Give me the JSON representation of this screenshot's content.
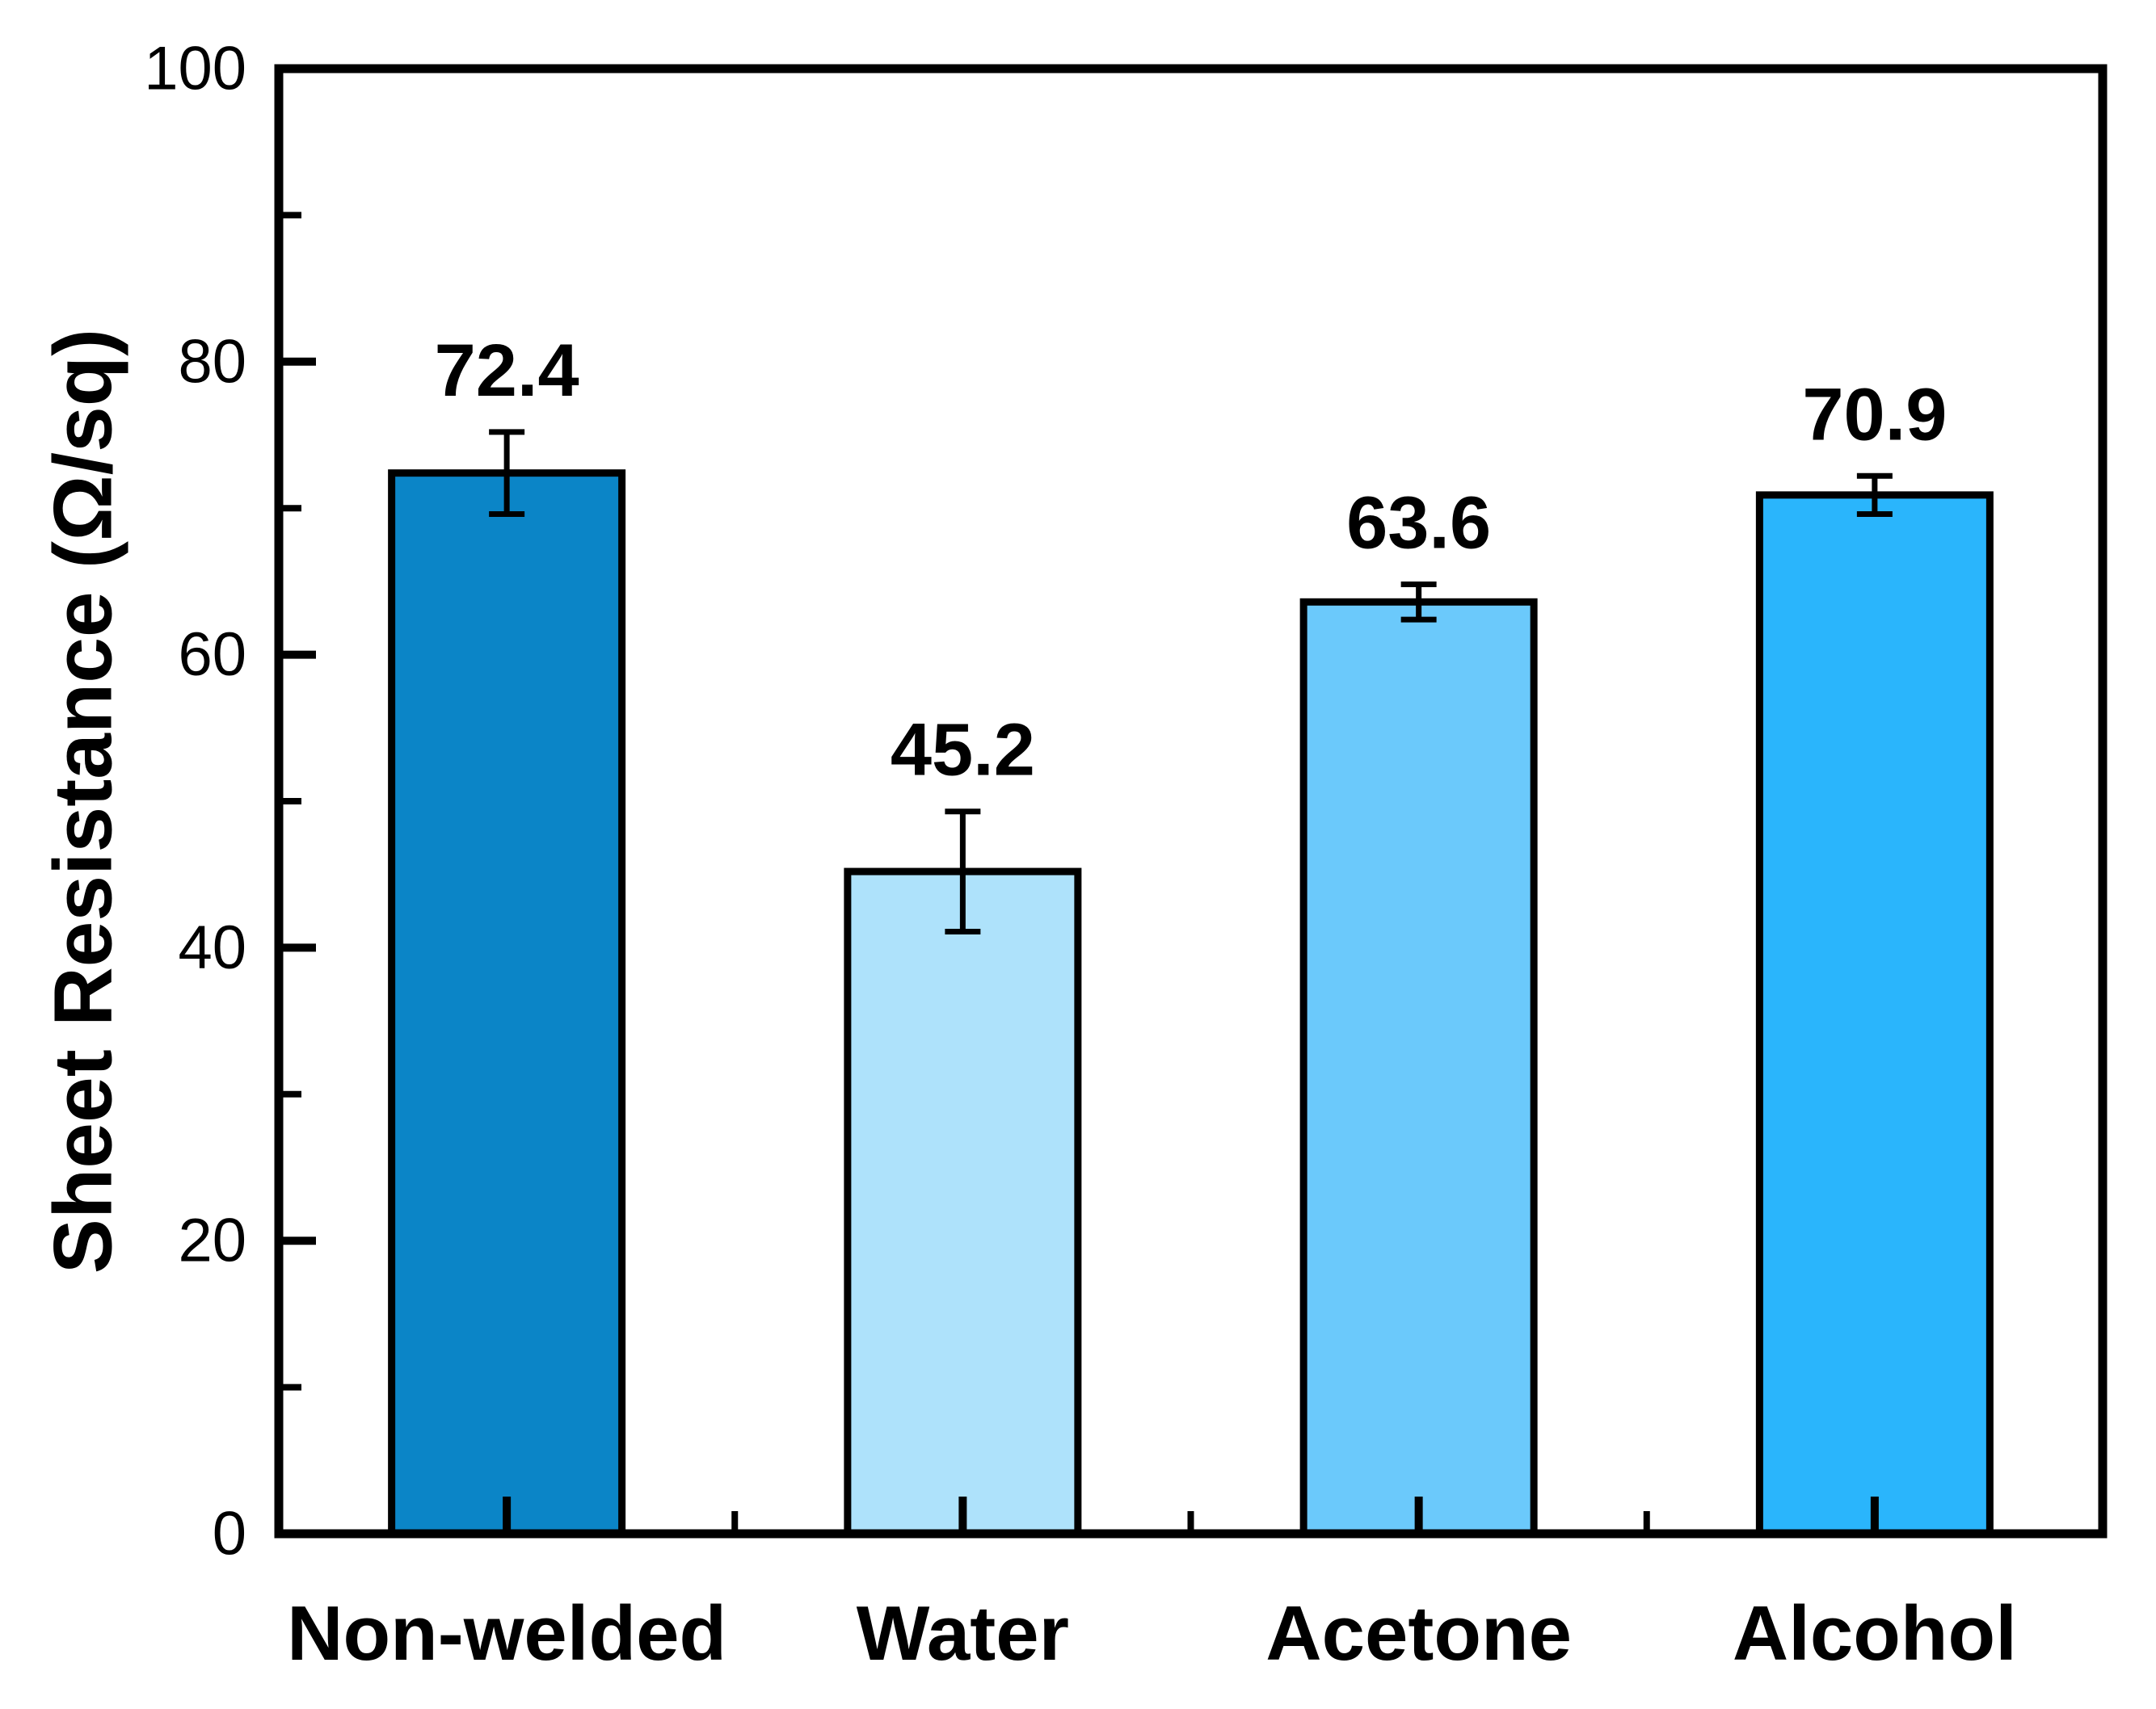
{
  "chart_data": {
    "type": "bar",
    "title": "",
    "categories": [
      "Non-welded",
      "Water",
      "Acetone",
      "Alcohol"
    ],
    "values": [
      72.4,
      45.2,
      63.6,
      70.9
    ],
    "value_labels": [
      "72.4",
      "45.2",
      "63.6",
      "70.9"
    ],
    "errors": [
      2.8,
      4.1,
      1.2,
      1.3
    ],
    "bar_colors": [
      "#0b85c7",
      "#aee2fb",
      "#6bc9fb",
      "#2ab5fc"
    ],
    "bar_edge_color": "#000000",
    "error_bar_color": "#000000",
    "axis_color": "#000000",
    "background_color": "#ffffff",
    "xlabel": "",
    "ylabel": "Sheet Resistance (Ω/sq)",
    "ylim": [
      0,
      100
    ],
    "y_major_ticks": [
      0,
      20,
      40,
      60,
      80,
      100
    ],
    "y_minor_ticks": [
      10,
      30,
      50,
      70,
      90
    ],
    "grid": false,
    "legend": false,
    "tick_direction": "in",
    "frame": "box"
  }
}
